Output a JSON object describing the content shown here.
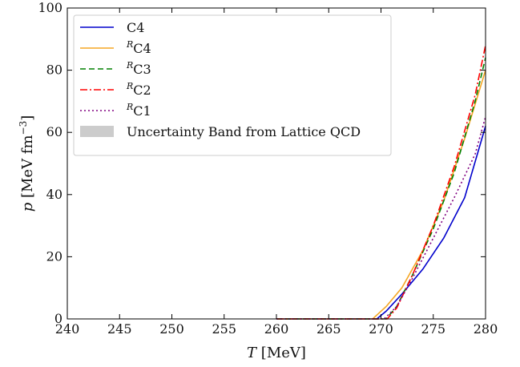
{
  "chart_data": {
    "type": "line",
    "xlabel": {
      "var": "T",
      "unit": "[MeV]"
    },
    "ylabel": {
      "var": "p",
      "unit": "[MeV fm",
      "exp": "−3",
      "close": "]"
    },
    "xlim": [
      240,
      280
    ],
    "ylim": [
      0,
      100
    ],
    "x_ticks": [
      240,
      245,
      250,
      255,
      260,
      265,
      270,
      275,
      280
    ],
    "y_ticks": [
      0,
      20,
      40,
      60,
      80,
      100
    ],
    "legend_position": "top-left",
    "series": [
      {
        "name": "C4",
        "sup": "",
        "color": "#0000cc",
        "dash": "",
        "points": [
          [
            260,
            0
          ],
          [
            269.6,
            0
          ],
          [
            270.5,
            2.5
          ],
          [
            272,
            8
          ],
          [
            274,
            16
          ],
          [
            276,
            26
          ],
          [
            278,
            39
          ],
          [
            280,
            62
          ]
        ]
      },
      {
        "name": "C4",
        "sup": "R",
        "color": "#f5a623",
        "dash": "",
        "points": [
          [
            260,
            0
          ],
          [
            269.2,
            0
          ],
          [
            270.5,
            4
          ],
          [
            272,
            10
          ],
          [
            274,
            22
          ],
          [
            276,
            38
          ],
          [
            278,
            58
          ],
          [
            280,
            80
          ]
        ]
      },
      {
        "name": "C3",
        "sup": "R",
        "color": "#008000",
        "dash": "7,4",
        "points": [
          [
            260,
            0
          ],
          [
            270.5,
            0
          ],
          [
            271.5,
            4
          ],
          [
            273,
            14
          ],
          [
            275,
            29
          ],
          [
            277,
            47
          ],
          [
            279,
            70
          ],
          [
            280,
            84
          ]
        ]
      },
      {
        "name": "C2",
        "sup": "R",
        "color": "#ff0000",
        "dash": "9,3,2,3",
        "points": [
          [
            260,
            0
          ],
          [
            270.6,
            0
          ],
          [
            271.5,
            3.5
          ],
          [
            273,
            14
          ],
          [
            275,
            30
          ],
          [
            277,
            49
          ],
          [
            279,
            72
          ],
          [
            280,
            88
          ]
        ]
      },
      {
        "name": "C1",
        "sup": "R",
        "color": "#800080",
        "dash": "2,3",
        "points": [
          [
            260,
            0
          ],
          [
            270.3,
            0
          ],
          [
            271.5,
            4
          ],
          [
            273,
            13
          ],
          [
            275,
            26
          ],
          [
            277,
            39
          ],
          [
            279,
            53
          ],
          [
            280,
            65
          ]
        ]
      }
    ],
    "band": {
      "name": "Uncertainty Band from Lattice QCD",
      "color": "#cccccc"
    }
  }
}
